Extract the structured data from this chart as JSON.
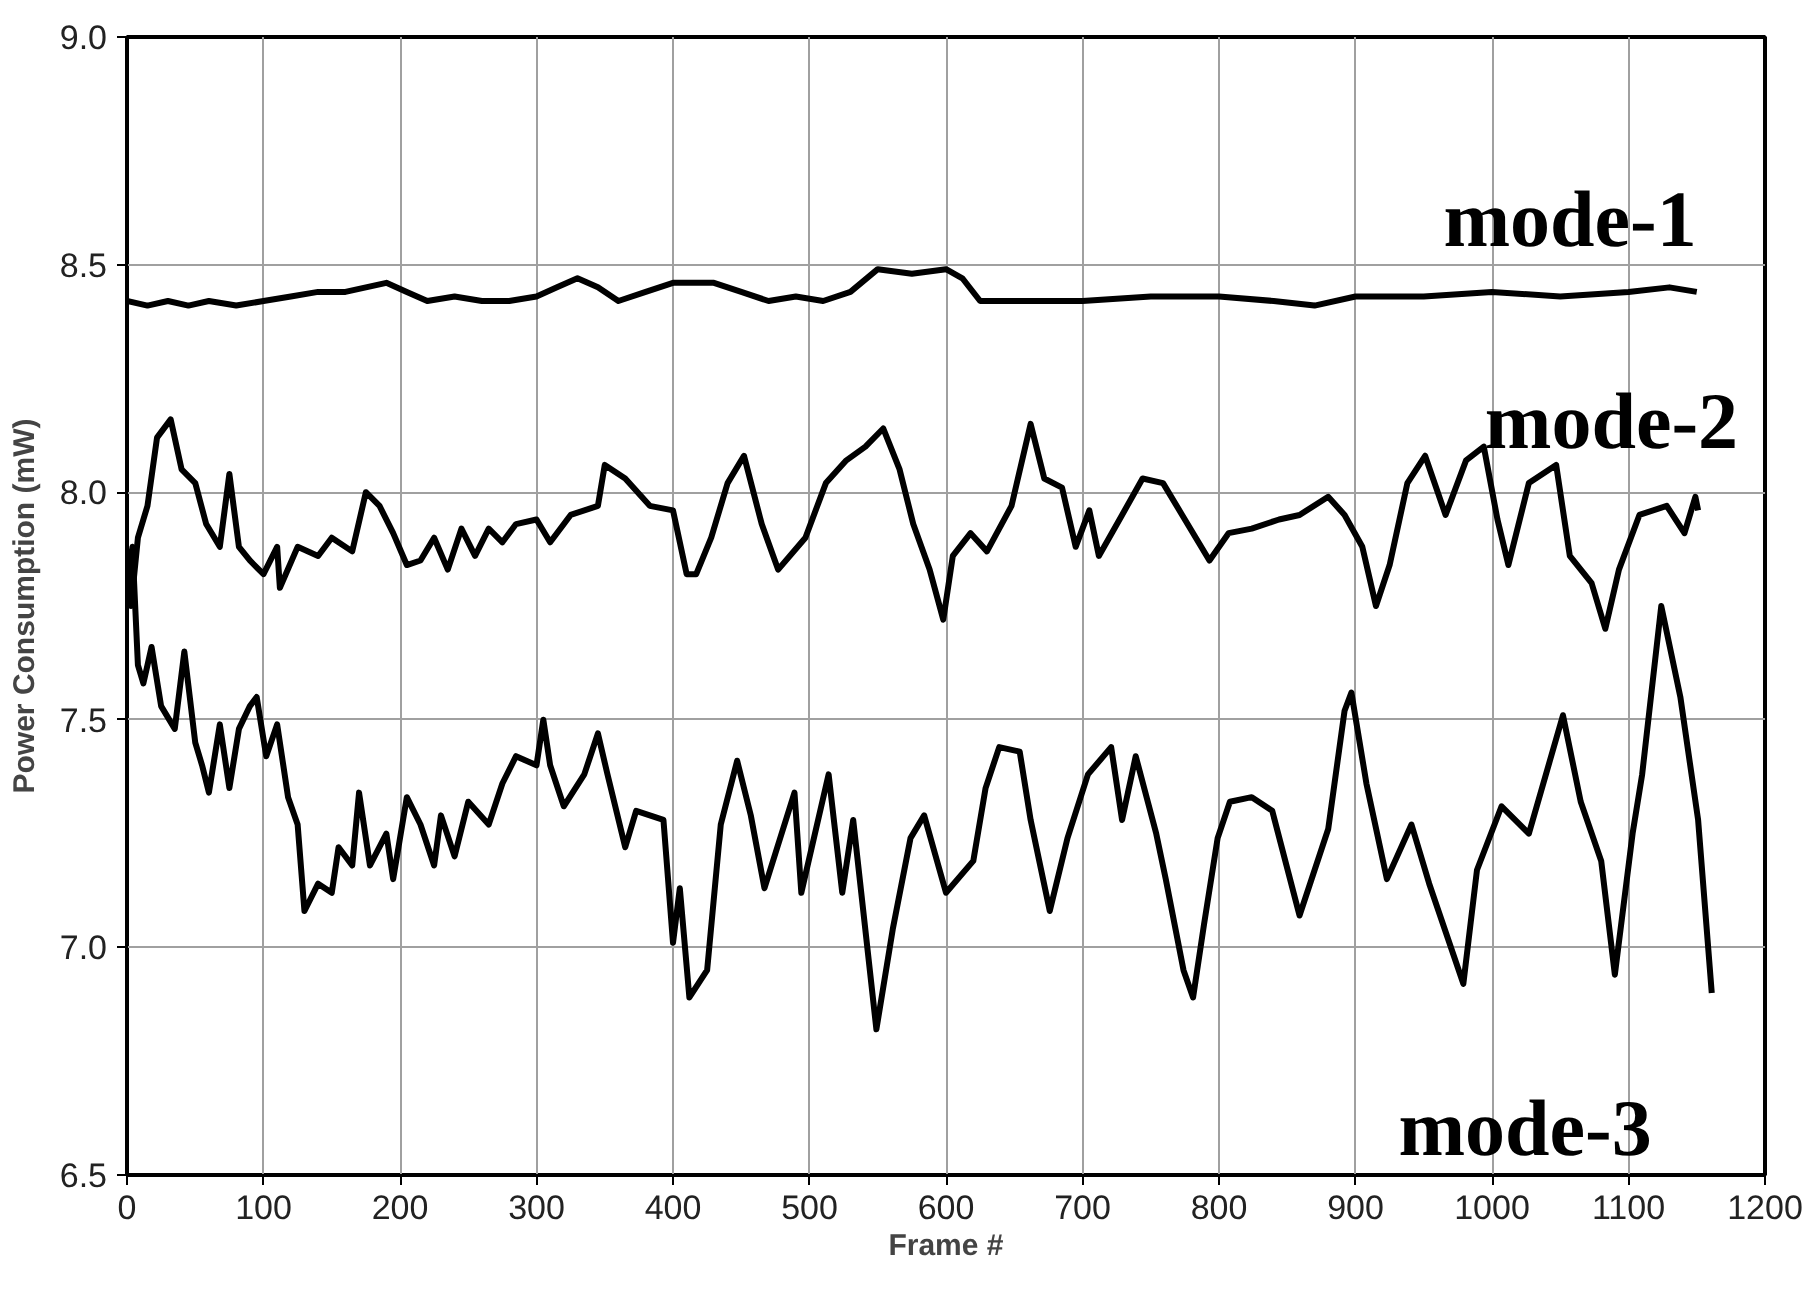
{
  "chart_data": {
    "type": "line",
    "xlabel": "Frame #",
    "ylabel": "Power Consumption (mW)",
    "xlim": [
      0,
      1200
    ],
    "xticks": [
      0,
      100,
      200,
      300,
      400,
      500,
      600,
      700,
      800,
      900,
      1000,
      1100,
      1200
    ],
    "ylim": [
      6.5,
      9.0
    ],
    "yticks": [
      {
        "value": 6.5,
        "label": "6.5"
      },
      {
        "value": 7.0,
        "label": "7.0"
      },
      {
        "value": 7.5,
        "label": "7.5"
      },
      {
        "value": 8.0,
        "label": "8.0"
      },
      {
        "value": 8.5,
        "label": "8.5"
      },
      {
        "value": 9.0,
        "label": "9.0"
      }
    ],
    "grid": true,
    "line_style": "solid",
    "marker": "none",
    "series": [
      {
        "name": "mode-1",
        "color": "#000000",
        "x": [
          0,
          15,
          30,
          45,
          60,
          80,
          100,
          120,
          140,
          160,
          190,
          205,
          220,
          240,
          260,
          280,
          300,
          315,
          330,
          345,
          360,
          380,
          400,
          415,
          430,
          450,
          470,
          490,
          510,
          530,
          550,
          575,
          600,
          612,
          625,
          650,
          700,
          750,
          800,
          840,
          870,
          900,
          950,
          1000,
          1050,
          1100,
          1130,
          1150
        ],
        "values": [
          8.42,
          8.41,
          8.42,
          8.41,
          8.42,
          8.41,
          8.42,
          8.43,
          8.44,
          8.44,
          8.46,
          8.44,
          8.42,
          8.43,
          8.42,
          8.42,
          8.43,
          8.45,
          8.47,
          8.45,
          8.42,
          8.44,
          8.46,
          8.46,
          8.46,
          8.44,
          8.42,
          8.43,
          8.42,
          8.44,
          8.49,
          8.48,
          8.49,
          8.47,
          8.42,
          8.42,
          8.42,
          8.43,
          8.43,
          8.42,
          8.41,
          8.43,
          8.43,
          8.44,
          8.43,
          8.44,
          8.45,
          8.44
        ]
      },
      {
        "name": "mode-2",
        "color": "#000000",
        "x": [
          0,
          3,
          8,
          15,
          22,
          32,
          40,
          50,
          58,
          68,
          75,
          82,
          90,
          100,
          110,
          112,
          125,
          140,
          150,
          165,
          175,
          185,
          195,
          205,
          215,
          225,
          235,
          245,
          255,
          265,
          275,
          285,
          300,
          310,
          325,
          345,
          350,
          365,
          383,
          400,
          410,
          417,
          428,
          440,
          452,
          465,
          477,
          497,
          512,
          527,
          541,
          554,
          566,
          576,
          588,
          598,
          605,
          618,
          630,
          648,
          662,
          672,
          685,
          695,
          705,
          712,
          729,
          744,
          759,
          773,
          793,
          807,
          824,
          844,
          859,
          880,
          892,
          905,
          915,
          925,
          938,
          951,
          966,
          981,
          994,
          1004,
          1012,
          1027,
          1047,
          1057,
          1073,
          1083,
          1093,
          1108,
          1128,
          1141,
          1149,
          1151
        ],
        "values": [
          7.86,
          7.75,
          7.9,
          7.97,
          8.12,
          8.16,
          8.05,
          8.02,
          7.93,
          7.88,
          8.04,
          7.88,
          7.85,
          7.82,
          7.88,
          7.79,
          7.88,
          7.86,
          7.9,
          7.87,
          8.0,
          7.97,
          7.91,
          7.84,
          7.85,
          7.9,
          7.83,
          7.92,
          7.86,
          7.92,
          7.89,
          7.93,
          7.94,
          7.89,
          7.95,
          7.97,
          8.06,
          8.03,
          7.97,
          7.96,
          7.82,
          7.82,
          7.9,
          8.02,
          8.08,
          7.93,
          7.83,
          7.9,
          8.02,
          8.07,
          8.1,
          8.14,
          8.05,
          7.93,
          7.83,
          7.72,
          7.86,
          7.91,
          7.87,
          7.97,
          8.15,
          8.03,
          8.01,
          7.88,
          7.96,
          7.86,
          7.95,
          8.03,
          8.02,
          7.95,
          7.85,
          7.91,
          7.92,
          7.94,
          7.95,
          7.99,
          7.95,
          7.88,
          7.75,
          7.84,
          8.02,
          8.08,
          7.95,
          8.07,
          8.1,
          7.94,
          7.84,
          8.02,
          8.06,
          7.86,
          7.8,
          7.7,
          7.83,
          7.95,
          7.97,
          7.91,
          7.99,
          7.96
        ]
      },
      {
        "name": "mode-3",
        "color": "#000000",
        "x": [
          0,
          4,
          8,
          12,
          18,
          25,
          35,
          42,
          50,
          55,
          60,
          68,
          75,
          82,
          90,
          95,
          102,
          110,
          118,
          125,
          130,
          140,
          150,
          155,
          165,
          170,
          178,
          190,
          195,
          205,
          215,
          225,
          230,
          240,
          250,
          265,
          275,
          285,
          300,
          305,
          310,
          320,
          335,
          345,
          352,
          365,
          373,
          393,
          400,
          405,
          412,
          425,
          435,
          447,
          457,
          467,
          489,
          494,
          514,
          524,
          532,
          549,
          561,
          574,
          584,
          600,
          620,
          629,
          639,
          654,
          662,
          676,
          689,
          704,
          721,
          729,
          739,
          754,
          761,
          774,
          781,
          789,
          799,
          808,
          824,
          839,
          859,
          880,
          892,
          897,
          908,
          923,
          941,
          954,
          979,
          989,
          1007,
          1027,
          1052,
          1065,
          1080,
          1090,
          1103,
          1110,
          1124,
          1138,
          1151,
          1161
        ],
        "values": [
          7.8,
          7.88,
          7.62,
          7.58,
          7.66,
          7.53,
          7.48,
          7.65,
          7.45,
          7.4,
          7.34,
          7.49,
          7.35,
          7.48,
          7.53,
          7.55,
          7.42,
          7.49,
          7.33,
          7.27,
          7.08,
          7.14,
          7.12,
          7.22,
          7.18,
          7.34,
          7.18,
          7.25,
          7.15,
          7.33,
          7.27,
          7.18,
          7.29,
          7.2,
          7.32,
          7.27,
          7.36,
          7.42,
          7.4,
          7.5,
          7.4,
          7.31,
          7.38,
          7.47,
          7.38,
          7.22,
          7.3,
          7.28,
          7.01,
          7.13,
          6.89,
          6.95,
          7.27,
          7.41,
          7.29,
          7.13,
          7.34,
          7.12,
          7.38,
          7.12,
          7.28,
          6.82,
          7.04,
          7.24,
          7.29,
          7.12,
          7.19,
          7.35,
          7.44,
          7.43,
          7.28,
          7.08,
          7.24,
          7.38,
          7.44,
          7.28,
          7.42,
          7.25,
          7.15,
          6.95,
          6.89,
          7.05,
          7.24,
          7.32,
          7.33,
          7.3,
          7.07,
          7.26,
          7.52,
          7.56,
          7.36,
          7.15,
          7.27,
          7.14,
          6.92,
          7.17,
          7.31,
          7.25,
          7.51,
          7.32,
          7.19,
          6.94,
          7.25,
          7.38,
          7.75,
          7.55,
          7.28,
          6.9
        ]
      }
    ]
  }
}
